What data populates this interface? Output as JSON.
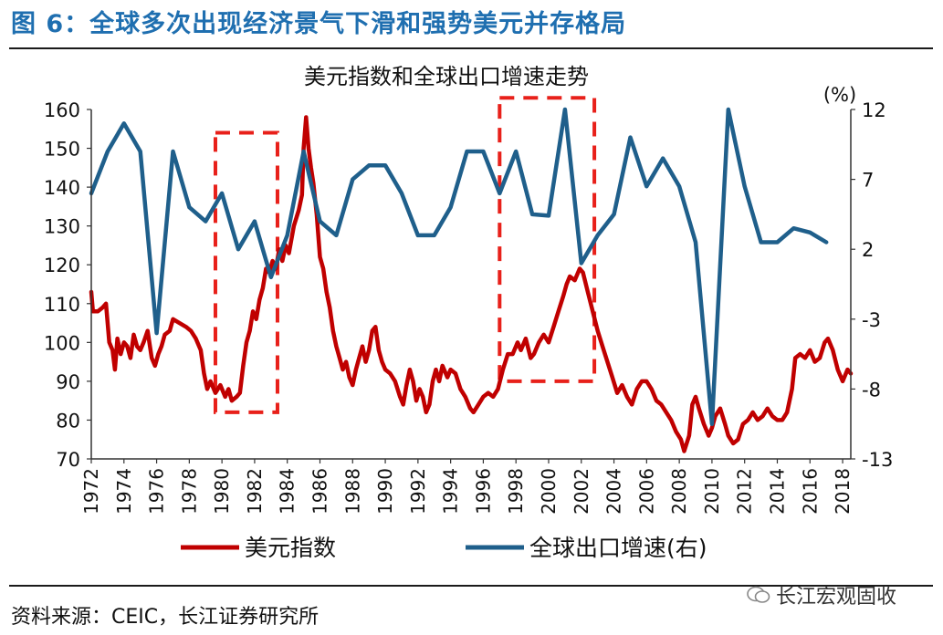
{
  "page": {
    "figure_title": "图 6：全球多次出现经济景气下滑和强势美元并存格局",
    "source_note": "资料来源：CEIC，长江证券研究所",
    "watermark": "长江宏观固收"
  },
  "chart_data": {
    "type": "line",
    "title": "美元指数和全球出口增速走势",
    "right_axis_unit": "(%)",
    "x_range": [
      1972,
      2018.5
    ],
    "x_ticks": [
      "1972",
      "1974",
      "1976",
      "1978",
      "1980",
      "1982",
      "1984",
      "1986",
      "1988",
      "1990",
      "1992",
      "1994",
      "1996",
      "1998",
      "2000",
      "2002",
      "2004",
      "2006",
      "2008",
      "2010",
      "2012",
      "2014",
      "2016",
      "2018"
    ],
    "y_left": {
      "range": [
        70,
        160
      ],
      "ticks": [
        "70",
        "80",
        "90",
        "100",
        "110",
        "120",
        "130",
        "140",
        "150",
        "160"
      ]
    },
    "y_right": {
      "range": [
        -13,
        12
      ],
      "ticks": [
        "-13",
        "-8",
        "-3",
        "2",
        "7",
        "12"
      ]
    },
    "grid": false,
    "legend_position": "bottom",
    "colors": {
      "usd_index": "#c00000",
      "export_growth": "#1f5f8b",
      "highlight_box": "#e8201a",
      "title_text": "#1f6fb0"
    },
    "series": [
      {
        "name": "美元指数",
        "axis": "left",
        "points": [
          [
            1972.0,
            113
          ],
          [
            1972.1,
            108
          ],
          [
            1972.4,
            108
          ],
          [
            1972.7,
            109
          ],
          [
            1972.9,
            110
          ],
          [
            1973.1,
            100
          ],
          [
            1973.3,
            98
          ],
          [
            1973.45,
            93
          ],
          [
            1973.6,
            101
          ],
          [
            1973.8,
            97
          ],
          [
            1974.0,
            100
          ],
          [
            1974.2,
            99
          ],
          [
            1974.4,
            96
          ],
          [
            1974.6,
            102
          ],
          [
            1974.8,
            99
          ],
          [
            1975.0,
            98
          ],
          [
            1975.2,
            100
          ],
          [
            1975.45,
            103
          ],
          [
            1975.7,
            96
          ],
          [
            1975.9,
            94
          ],
          [
            1976.1,
            97
          ],
          [
            1976.3,
            99
          ],
          [
            1976.5,
            102
          ],
          [
            1976.8,
            103
          ],
          [
            1977.0,
            106
          ],
          [
            1977.4,
            105
          ],
          [
            1977.8,
            104
          ],
          [
            1978.1,
            103
          ],
          [
            1978.4,
            101
          ],
          [
            1978.7,
            98
          ],
          [
            1978.9,
            92
          ],
          [
            1979.1,
            88
          ],
          [
            1979.3,
            90
          ],
          [
            1979.6,
            87
          ],
          [
            1979.9,
            89
          ],
          [
            1980.2,
            86
          ],
          [
            1980.4,
            88
          ],
          [
            1980.6,
            85
          ],
          [
            1980.9,
            86
          ],
          [
            1981.1,
            87
          ],
          [
            1981.3,
            94
          ],
          [
            1981.5,
            100
          ],
          [
            1981.7,
            103
          ],
          [
            1981.9,
            108
          ],
          [
            1982.1,
            106
          ],
          [
            1982.3,
            111
          ],
          [
            1982.5,
            114
          ],
          [
            1982.7,
            119
          ],
          [
            1982.9,
            118
          ],
          [
            1983.1,
            121
          ],
          [
            1983.3,
            119
          ],
          [
            1983.5,
            124
          ],
          [
            1983.7,
            121
          ],
          [
            1983.9,
            125
          ],
          [
            1984.1,
            123
          ],
          [
            1984.4,
            130
          ],
          [
            1984.7,
            134
          ],
          [
            1984.9,
            138
          ],
          [
            1985.0,
            150
          ],
          [
            1985.15,
            158
          ],
          [
            1985.3,
            150
          ],
          [
            1985.45,
            145
          ],
          [
            1985.6,
            141
          ],
          [
            1985.8,
            133
          ],
          [
            1986.0,
            122
          ],
          [
            1986.2,
            119
          ],
          [
            1986.4,
            113
          ],
          [
            1986.6,
            109
          ],
          [
            1986.8,
            103
          ],
          [
            1987.0,
            99
          ],
          [
            1987.2,
            96
          ],
          [
            1987.4,
            93
          ],
          [
            1987.6,
            95
          ],
          [
            1987.8,
            91
          ],
          [
            1988.0,
            89
          ],
          [
            1988.2,
            93
          ],
          [
            1988.4,
            96
          ],
          [
            1988.6,
            99
          ],
          [
            1988.8,
            95
          ],
          [
            1989.0,
            98
          ],
          [
            1989.2,
            103
          ],
          [
            1989.4,
            104
          ],
          [
            1989.6,
            98
          ],
          [
            1989.8,
            95
          ],
          [
            1990.0,
            93
          ],
          [
            1990.3,
            92
          ],
          [
            1990.6,
            90
          ],
          [
            1990.9,
            86
          ],
          [
            1991.1,
            84
          ],
          [
            1991.3,
            89
          ],
          [
            1991.5,
            93
          ],
          [
            1991.7,
            90
          ],
          [
            1991.9,
            85
          ],
          [
            1992.1,
            88
          ],
          [
            1992.3,
            86
          ],
          [
            1992.5,
            82
          ],
          [
            1992.7,
            84
          ],
          [
            1992.9,
            90
          ],
          [
            1993.1,
            93
          ],
          [
            1993.3,
            90
          ],
          [
            1993.5,
            94
          ],
          [
            1993.8,
            91
          ],
          [
            1994.0,
            93
          ],
          [
            1994.3,
            92
          ],
          [
            1994.6,
            88
          ],
          [
            1994.9,
            86
          ],
          [
            1995.2,
            83
          ],
          [
            1995.4,
            82
          ],
          [
            1995.7,
            84
          ],
          [
            1996.0,
            86
          ],
          [
            1996.3,
            87
          ],
          [
            1996.6,
            86
          ],
          [
            1996.9,
            88
          ],
          [
            1997.2,
            93
          ],
          [
            1997.5,
            97
          ],
          [
            1997.8,
            97
          ],
          [
            1998.1,
            100
          ],
          [
            1998.3,
            98
          ],
          [
            1998.6,
            101
          ],
          [
            1998.9,
            96
          ],
          [
            1999.1,
            97
          ],
          [
            1999.4,
            100
          ],
          [
            1999.7,
            102
          ],
          [
            2000.0,
            100
          ],
          [
            2000.3,
            104
          ],
          [
            2000.6,
            108
          ],
          [
            2000.9,
            112
          ],
          [
            2001.1,
            115
          ],
          [
            2001.3,
            117
          ],
          [
            2001.6,
            116
          ],
          [
            2001.9,
            119
          ],
          [
            2002.1,
            118
          ],
          [
            2002.4,
            113
          ],
          [
            2002.7,
            108
          ],
          [
            2003.0,
            103
          ],
          [
            2003.3,
            99
          ],
          [
            2003.6,
            95
          ],
          [
            2003.9,
            91
          ],
          [
            2004.2,
            87
          ],
          [
            2004.5,
            89
          ],
          [
            2004.8,
            86
          ],
          [
            2005.1,
            84
          ],
          [
            2005.4,
            88
          ],
          [
            2005.7,
            90
          ],
          [
            2006.0,
            90
          ],
          [
            2006.3,
            88
          ],
          [
            2006.6,
            85
          ],
          [
            2006.9,
            84
          ],
          [
            2007.2,
            82
          ],
          [
            2007.5,
            80
          ],
          [
            2007.8,
            77
          ],
          [
            2008.1,
            75
          ],
          [
            2008.3,
            72
          ],
          [
            2008.6,
            76
          ],
          [
            2008.8,
            84
          ],
          [
            2009.0,
            86
          ],
          [
            2009.2,
            83
          ],
          [
            2009.5,
            79
          ],
          [
            2009.8,
            76
          ],
          [
            2010.0,
            78
          ],
          [
            2010.2,
            81
          ],
          [
            2010.5,
            83
          ],
          [
            2010.8,
            79
          ],
          [
            2011.0,
            76
          ],
          [
            2011.3,
            74
          ],
          [
            2011.6,
            75
          ],
          [
            2011.9,
            79
          ],
          [
            2012.2,
            80
          ],
          [
            2012.5,
            82
          ],
          [
            2012.8,
            80
          ],
          [
            2013.1,
            81
          ],
          [
            2013.4,
            83
          ],
          [
            2013.7,
            81
          ],
          [
            2014.0,
            80
          ],
          [
            2014.3,
            80
          ],
          [
            2014.6,
            82
          ],
          [
            2014.9,
            88
          ],
          [
            2015.1,
            96
          ],
          [
            2015.4,
            97
          ],
          [
            2015.7,
            96
          ],
          [
            2016.0,
            98
          ],
          [
            2016.3,
            95
          ],
          [
            2016.6,
            96
          ],
          [
            2016.9,
            100
          ],
          [
            2017.1,
            101
          ],
          [
            2017.4,
            98
          ],
          [
            2017.7,
            93
          ],
          [
            2018.0,
            90
          ],
          [
            2018.3,
            93
          ],
          [
            2018.5,
            92
          ]
        ]
      },
      {
        "name": "全球出口增速(右)",
        "axis": "right",
        "points": [
          [
            1972.0,
            6
          ],
          [
            1973.0,
            9
          ],
          [
            1974.0,
            11
          ],
          [
            1975.0,
            9
          ],
          [
            1976.0,
            -4
          ],
          [
            1977.0,
            9
          ],
          [
            1978.0,
            5
          ],
          [
            1979.0,
            4
          ],
          [
            1980.0,
            6
          ],
          [
            1981.0,
            2
          ],
          [
            1982.0,
            4
          ],
          [
            1983.0,
            0
          ],
          [
            1984.0,
            3
          ],
          [
            1985.0,
            9
          ],
          [
            1986.0,
            4
          ],
          [
            1987.0,
            3
          ],
          [
            1988.0,
            7
          ],
          [
            1989.0,
            8
          ],
          [
            1990.0,
            8
          ],
          [
            1991.0,
            6
          ],
          [
            1992.0,
            3
          ],
          [
            1993.0,
            3
          ],
          [
            1994.0,
            5
          ],
          [
            1995.0,
            9
          ],
          [
            1996.0,
            9
          ],
          [
            1997.0,
            6
          ],
          [
            1998.0,
            9
          ],
          [
            1999.0,
            4.5
          ],
          [
            2000.0,
            4.4
          ],
          [
            2001.0,
            12
          ],
          [
            2002.0,
            1
          ],
          [
            2003.0,
            3
          ],
          [
            2004.0,
            4.5
          ],
          [
            2005.0,
            10
          ],
          [
            2006.0,
            6.5
          ],
          [
            2007.0,
            8.5
          ],
          [
            2008.0,
            6.5
          ],
          [
            2009.0,
            2.5
          ],
          [
            2010.0,
            -10.5
          ],
          [
            2011.0,
            12
          ],
          [
            2012.0,
            6.5
          ],
          [
            2013.0,
            2.5
          ],
          [
            2014.0,
            2.5
          ],
          [
            2015.0,
            3.5
          ],
          [
            2016.0,
            3.2
          ],
          [
            2017.0,
            2.5
          ]
        ]
      }
    ],
    "annotations": [
      {
        "type": "dashed-box",
        "x_range": [
          1979.6,
          1983.4
        ],
        "y_range": [
          82,
          154
        ]
      },
      {
        "type": "dashed-box",
        "x_range": [
          1997.0,
          2002.8
        ],
        "y_range": [
          90,
          163
        ]
      }
    ]
  }
}
